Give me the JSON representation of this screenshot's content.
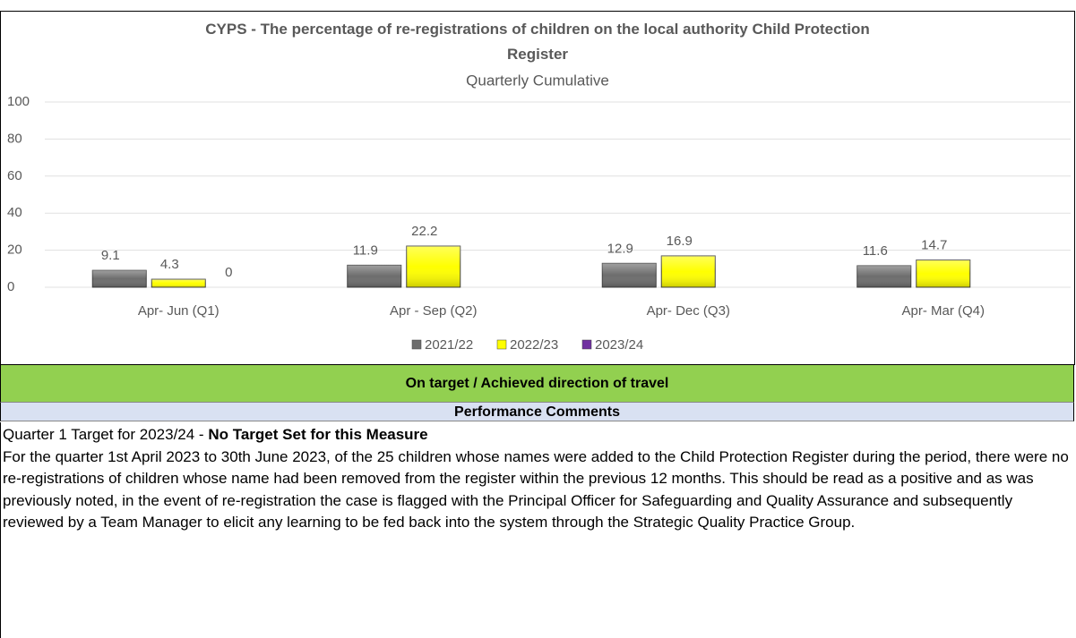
{
  "chart_data": {
    "type": "bar",
    "title": "CYPS -  The percentage of re-registrations of children on the local authority Child Protection Register",
    "subtitle": "Quarterly Cumulative",
    "categories": [
      "Apr- Jun  (Q1)",
      "Apr - Sep  (Q2)",
      "Apr- Dec  (Q3)",
      "Apr- Mar  (Q4)"
    ],
    "series": [
      {
        "name": "2021/22",
        "color": "#6d6d6d",
        "values": [
          9.1,
          11.9,
          12.9,
          11.6
        ]
      },
      {
        "name": "2022/23",
        "color": "#ffff00",
        "values": [
          4.3,
          22.2,
          16.9,
          14.7
        ]
      },
      {
        "name": "2023/24",
        "color": "#7030a0",
        "values": [
          0,
          null,
          null,
          null
        ]
      }
    ],
    "ylim": [
      0,
      100
    ],
    "yticks": [
      0,
      20,
      40,
      60,
      80,
      100
    ],
    "grid": true,
    "legend": "bottom"
  },
  "status": "On target / Achieved direction of travel",
  "comments": {
    "heading": "Performance Comments",
    "target_text": "Quarter 1 Target for 2023/24 -",
    "target_value": "No Target Set for this Measure",
    "body": "For the quarter 1st April 2023 to 30th June 2023, of the 25 children whose names were added to the Child Protection Register during the period, there were no re-registrations of children whose name had been removed from the register within the previous 12 months. This should be read as a positive and as was previously noted, in the event of re-registration the case is flagged with the Principal Officer for Safeguarding and Quality Assurance and subsequently reviewed by a Team Manager to elicit any learning to be fed back into the system through the Strategic Quality Practice Group."
  }
}
